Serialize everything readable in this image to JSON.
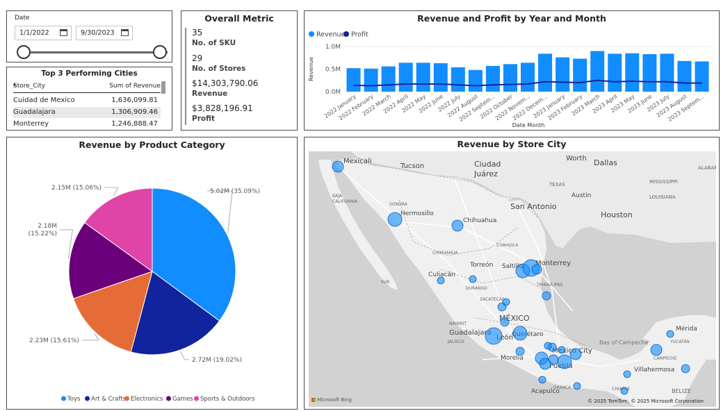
{
  "date_slicer": {
    "label": "Date",
    "start": "1/1/2022",
    "end": "9/30/2023"
  },
  "top_cities": {
    "title": "Top 3 Performing Cities",
    "col_city": "Store_City",
    "col_revenue": "Sum of Revenue",
    "rows": [
      {
        "city": "Cuidad de Mexico",
        "revenue": "1,636,099.81"
      },
      {
        "city": "Guadalajara",
        "revenue": "1,306,909.46"
      },
      {
        "city": "Monterrey",
        "revenue": "1,246,888.47"
      }
    ]
  },
  "overall_metric": {
    "title": "Overall Metric",
    "items": [
      {
        "value": "35",
        "label": "No. of SKU"
      },
      {
        "value": "29",
        "label": "No. of Stores"
      },
      {
        "value": "$14,303,790.06",
        "label": "Revenue"
      },
      {
        "value": "$3,828,196.91",
        "label": "Profit"
      }
    ]
  },
  "revenue_profit_chart": {
    "title": "Revenue and Profit by Year and Month",
    "chart_data": {
      "type": "bar",
      "xlabel": "Date Month",
      "ylabel": "Revenue",
      "y_ticks": [
        "0.0M",
        "0.5M",
        "1.0M"
      ],
      "ylim": [
        0,
        1.0
      ],
      "legend_position": "top-left",
      "categories": [
        "2022 January",
        "2022 February",
        "2022 March",
        "2022 April",
        "2022 May",
        "2022 June",
        "2022 July",
        "2022 August",
        "2022 Septem...",
        "2022 October",
        "2022 Novem...",
        "2022 Decem...",
        "2023 January",
        "2023 February",
        "2023 March",
        "2023 April",
        "2023 May",
        "2023 June",
        "2023 July",
        "2023 August",
        "2023 Septem..."
      ],
      "series": [
        {
          "name": "Revenue",
          "type": "bar",
          "color": "#118DFF",
          "values": [
            0.52,
            0.51,
            0.56,
            0.64,
            0.64,
            0.63,
            0.54,
            0.48,
            0.57,
            0.61,
            0.64,
            0.84,
            0.76,
            0.73,
            0.9,
            0.84,
            0.85,
            0.83,
            0.84,
            0.68,
            0.67
          ]
        },
        {
          "name": "Profit",
          "type": "line",
          "color": "#12239E",
          "values": [
            0.14,
            0.13,
            0.15,
            0.17,
            0.17,
            0.17,
            0.15,
            0.13,
            0.15,
            0.16,
            0.17,
            0.22,
            0.21,
            0.2,
            0.25,
            0.22,
            0.23,
            0.22,
            0.22,
            0.19,
            0.19
          ]
        }
      ]
    }
  },
  "pie_chart": {
    "title": "Revenue by Product Category",
    "chart_data": {
      "type": "pie",
      "categories": [
        "Toys",
        "Art & Crafts",
        "Electronics",
        "Games",
        "Sports & Outdoors"
      ],
      "values": [
        5.02,
        2.72,
        2.23,
        2.18,
        2.15
      ],
      "labels": [
        "5.02M (35.09%)",
        "2.72M (19.02%)",
        "2.23M (15.61%)",
        "2.18M (15.22%)",
        "2.15M (15.06%)"
      ],
      "colors": [
        "#118DFF",
        "#12239E",
        "#E66C37",
        "#6B007B",
        "#E044A7"
      ],
      "legend_position": "bottom"
    }
  },
  "map": {
    "title": "Revenue by Store City",
    "bubble_color": "#118DFF",
    "attribution": "© 2025 TomTom, © 2025 Microsoft Corporation",
    "provider": "Microsoft Bing",
    "labels": {
      "mexicali": "Mexicali",
      "tucson": "Tucson",
      "ciudad": "Ciudad",
      "juarez": "Juárez",
      "worth": "Worth",
      "dallas": "Dallas",
      "alabama": "ALABAM",
      "mississippi": "MISSISSIPPI",
      "texas": "TEXAS",
      "austin": "Austin",
      "louisiana": "LOUISIANA",
      "san_antonio": "San Antonio",
      "houston": "Houston",
      "sonora": "SONORA",
      "hermosillo": "Hermosillo",
      "chihuahua": "Chihuahua",
      "chihuahua_state": "CHIHUAHUA",
      "coahuila": "COAHUILA",
      "torreon": "Torreón",
      "saltillo": "Saltillo",
      "monterrey": "Monterrey",
      "culiacan": "Culiacán",
      "durango": "DURANGO",
      "zacatecas": "ZACATECAS",
      "tamaulipas": "TAMAULIPAS",
      "mexico": "MÉXICO",
      "guadalajara": "Guadalajara",
      "leon": "León",
      "queretaro": "Querétaro",
      "morelia": "Morelia",
      "mexico_city": "Mexico City",
      "puebla": "Puebla",
      "acapulco": "Acapulco",
      "merida": "Mérida",
      "yucatan": "YUCATÁN",
      "bay": "Bay of Campeche",
      "campeche": "CAMPECHE",
      "villahermosa": "Villahermosa",
      "belize": "BELIZE",
      "baja": "BAJA",
      "california": "CALIFORNIA",
      "sur": "SUR",
      "nayarit": "NAYARIT",
      "jalisco": "JALISCO",
      "oaxaca": "OAXACA",
      "chiapas": "CHIAPAS"
    }
  }
}
